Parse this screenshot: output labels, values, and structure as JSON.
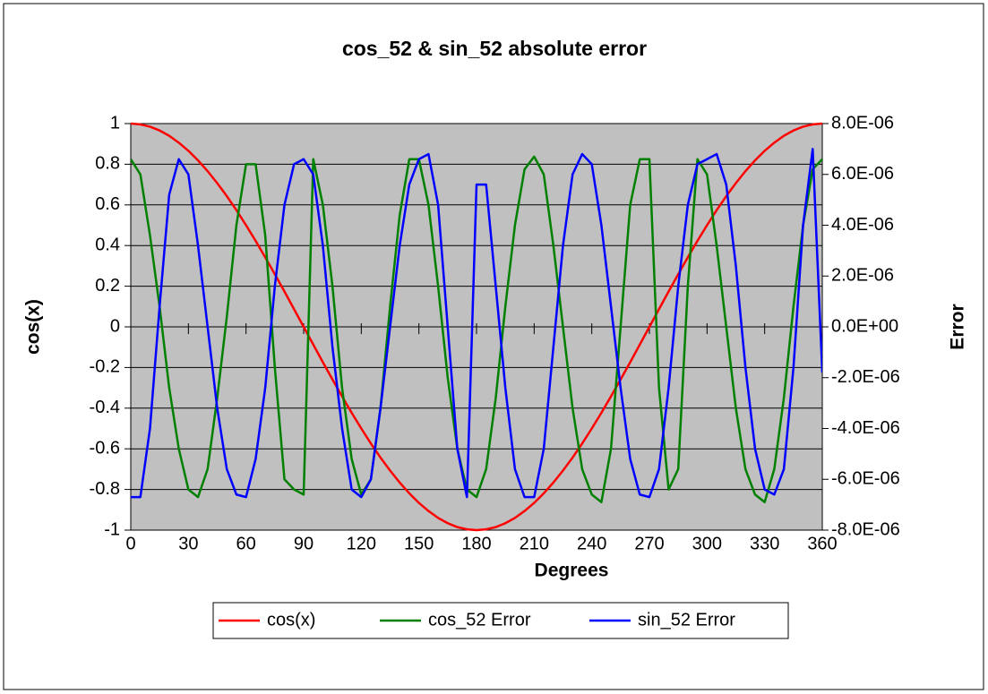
{
  "chart_data": {
    "type": "line",
    "title": "cos_52 &  sin_52 absolute error",
    "x_label": "Degrees",
    "y_label": "cos(x)",
    "y2_label": "Error",
    "x": [
      0,
      5,
      10,
      15,
      20,
      25,
      30,
      35,
      40,
      45,
      50,
      55,
      60,
      65,
      70,
      75,
      80,
      85,
      90,
      95,
      100,
      105,
      110,
      115,
      120,
      125,
      130,
      135,
      140,
      145,
      150,
      155,
      160,
      165,
      170,
      175,
      180,
      185,
      190,
      195,
      200,
      205,
      210,
      215,
      220,
      225,
      230,
      235,
      240,
      245,
      250,
      255,
      260,
      265,
      270,
      275,
      280,
      285,
      290,
      295,
      300,
      305,
      310,
      315,
      320,
      325,
      330,
      335,
      340,
      345,
      350,
      355,
      360
    ],
    "series": [
      {
        "name": "cos(x)",
        "color": "#ff0000",
        "axis": "y",
        "values": [
          1,
          0.996,
          0.985,
          0.966,
          0.94,
          0.906,
          0.866,
          0.819,
          0.766,
          0.707,
          0.643,
          0.574,
          0.5,
          0.423,
          0.342,
          0.259,
          0.174,
          0.087,
          0,
          -0.087,
          -0.174,
          -0.259,
          -0.342,
          -0.423,
          -0.5,
          -0.574,
          -0.643,
          -0.707,
          -0.766,
          -0.819,
          -0.866,
          -0.906,
          -0.94,
          -0.966,
          -0.985,
          -0.996,
          -1,
          -0.996,
          -0.985,
          -0.966,
          -0.94,
          -0.906,
          -0.866,
          -0.819,
          -0.766,
          -0.707,
          -0.643,
          -0.574,
          -0.5,
          -0.423,
          -0.342,
          -0.259,
          -0.174,
          -0.087,
          0,
          0.087,
          0.174,
          0.259,
          0.342,
          0.423,
          0.5,
          0.574,
          0.643,
          0.707,
          0.766,
          0.819,
          0.866,
          0.906,
          0.94,
          0.966,
          0.985,
          0.996,
          1
        ]
      },
      {
        "name": "cos_52  Error",
        "color": "#008000",
        "axis": "y2",
        "values": [
          6.6e-06,
          6e-06,
          3.6e-06,
          8e-07,
          -2.4e-06,
          -4.8e-06,
          -6.4e-06,
          -6.7e-06,
          -5.6e-06,
          -2.8e-06,
          4e-07,
          4e-06,
          6.4e-06,
          6.4e-06,
          3.6e-06,
          -1.6e-06,
          -6e-06,
          -6.4e-06,
          -6.6e-06,
          6.6e-06,
          4.8e-06,
          1.6e-06,
          -2.4e-06,
          -5.2e-06,
          -6.6e-06,
          -6e-06,
          -3.2e-06,
          8e-07,
          4.4e-06,
          6.6e-06,
          6.6e-06,
          4.8e-06,
          1.6e-06,
          -2e-06,
          -4.8e-06,
          -6.4e-06,
          -6.7e-06,
          -5.6e-06,
          -2.8e-06,
          8e-07,
          4e-06,
          6.2e-06,
          6.7e-06,
          6e-06,
          3.2e-06,
          0,
          -3.2e-06,
          -5.6e-06,
          -6.6e-06,
          -6.9e-06,
          -4.8e-06,
          0,
          4.8e-06,
          6.6e-06,
          6.6e-06,
          -2.4e-06,
          -6.4e-06,
          -5.6e-06,
          1.6e-06,
          6.6e-06,
          6e-06,
          3.2e-06,
          0,
          -3.2e-06,
          -5.6e-06,
          -6.6e-06,
          -6.9e-06,
          -5.6e-06,
          -2.8e-06,
          8e-07,
          4e-06,
          6.2e-06,
          6.6e-06
        ]
      },
      {
        "name": "sin_52 Error",
        "color": "#0000ff",
        "axis": "y2",
        "values": [
          -6.7e-06,
          -6.7e-06,
          -4e-06,
          8e-07,
          5.2e-06,
          6.6e-06,
          6e-06,
          3.2e-06,
          0,
          -3.2e-06,
          -5.6e-06,
          -6.6e-06,
          -6.7e-06,
          -5.2e-06,
          -2.4e-06,
          1.6e-06,
          4.8e-06,
          6.4e-06,
          6.6e-06,
          6e-06,
          3.2e-06,
          -8e-07,
          -4e-06,
          -6.4e-06,
          -6.7e-06,
          -6e-06,
          -3.2e-06,
          0,
          3.2e-06,
          5.6e-06,
          6.6e-06,
          6.8e-06,
          4.8e-06,
          0,
          -4.8e-06,
          -6.7e-06,
          5.6e-06,
          5.6e-06,
          1.6e-06,
          -2.4e-06,
          -5.6e-06,
          -6.7e-06,
          -6.7e-06,
          -4.8e-06,
          -8e-07,
          3.2e-06,
          6e-06,
          6.8e-06,
          6.4e-06,
          4e-06,
          8e-07,
          -2.4e-06,
          -5.2e-06,
          -6.6e-06,
          -6.7e-06,
          -5.6e-06,
          -2.4e-06,
          1.6e-06,
          4.8e-06,
          6.4e-06,
          6.6e-06,
          6.8e-06,
          5.6e-06,
          2.4e-06,
          -1.6e-06,
          -4.8e-06,
          -6.4e-06,
          -6.6e-06,
          -5.6e-06,
          -1.6e-06,
          4e-06,
          7e-06,
          -1.8e-06
        ]
      }
    ],
    "xlim": [
      0,
      360
    ],
    "xticks": [
      0,
      30,
      60,
      90,
      120,
      150,
      180,
      210,
      240,
      270,
      300,
      330,
      360
    ],
    "ylim": [
      -1,
      1
    ],
    "yticks": [
      -1,
      -0.8,
      -0.6,
      -0.4,
      -0.2,
      0,
      0.2,
      0.4,
      0.6,
      0.8,
      1
    ],
    "y2lim": [
      -8e-06,
      8e-06
    ],
    "y2ticks": [
      {
        "value": -8e-06,
        "label": "-8.0E-06"
      },
      {
        "value": -6e-06,
        "label": "-6.0E-06"
      },
      {
        "value": -4e-06,
        "label": "-4.0E-06"
      },
      {
        "value": -2e-06,
        "label": "-2.0E-06"
      },
      {
        "value": 0,
        "label": "0.0E+00"
      },
      {
        "value": 2e-06,
        "label": "2.0E-06"
      },
      {
        "value": 4e-06,
        "label": "4.0E-06"
      },
      {
        "value": 6e-06,
        "label": "6.0E-06"
      },
      {
        "value": 8e-06,
        "label": "8.0E-06"
      }
    ],
    "grid": true,
    "plot_background": "#c0c0c0",
    "legend": "bottom"
  }
}
